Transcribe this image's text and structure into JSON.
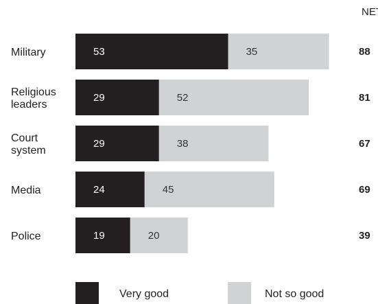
{
  "chart_data": {
    "type": "bar",
    "orientation": "horizontal",
    "stacked": true,
    "categories": [
      [
        "Military"
      ],
      [
        "Religious",
        "leaders"
      ],
      [
        "Court",
        "system"
      ],
      [
        "Media"
      ],
      [
        "Police"
      ]
    ],
    "series": [
      {
        "name": "Very good",
        "values": [
          53,
          29,
          29,
          24,
          19
        ]
      },
      {
        "name": "Not so good",
        "values": [
          35,
          52,
          38,
          45,
          20
        ]
      }
    ],
    "net_header": "NET",
    "net": [
      88,
      81,
      67,
      69,
      39
    ],
    "xlim": [
      0,
      100
    ],
    "grid": false,
    "legend_position": "bottom",
    "colors": {
      "very_good": "#231f20",
      "not_so_good": "#d1d2d3",
      "value_on_dark": "#ffffff",
      "value_on_light": "#333333"
    }
  }
}
